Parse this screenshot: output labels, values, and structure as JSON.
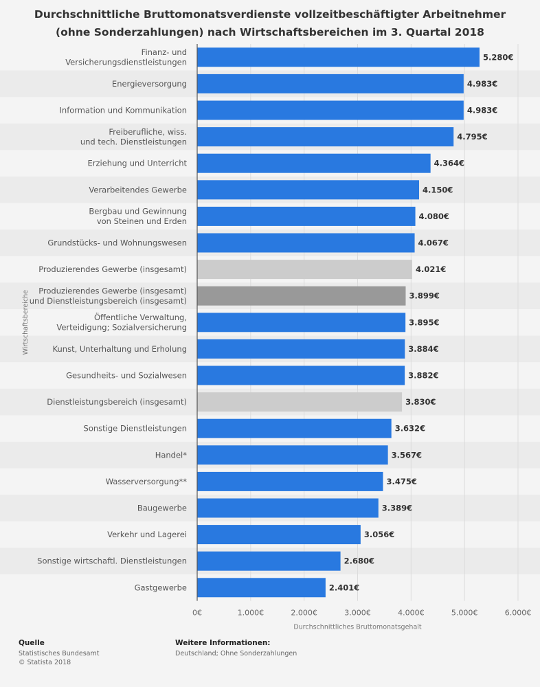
{
  "chart_data": {
    "type": "bar",
    "orientation": "horizontal",
    "title_line1": "Durchschnittliche Bruttomonatsverdienste vollzeitbeschäftigter Arbeitnehmer",
    "title_line2": "(ohne Sonderzahlungen) nach Wirtschaftsbereichen im 3. Quartal 2018",
    "xlabel": "Durchschnittliches Bruttomonatsgehalt",
    "ylabel": "Wirtschaftsbereiche",
    "xlim": [
      0,
      6000
    ],
    "xticks": [
      0,
      1000,
      2000,
      3000,
      4000,
      5000,
      6000
    ],
    "xtick_labels": [
      "0€",
      "1.000€",
      "2.000€",
      "3.000€",
      "4.000€",
      "5.000€",
      "6.000€"
    ],
    "grid": true,
    "colors": {
      "default": "#2979e0",
      "light_gray": "#cccccc",
      "dark_gray": "#999999"
    },
    "bars": [
      {
        "label": [
          "Finanz- und",
          "Versicherungsdienstleistungen"
        ],
        "value": 5280,
        "value_label": "5.280€",
        "color": "default"
      },
      {
        "label": [
          "Energieversorgung"
        ],
        "value": 4983,
        "value_label": "4.983€",
        "color": "default"
      },
      {
        "label": [
          "Information und Kommunikation"
        ],
        "value": 4983,
        "value_label": "4.983€",
        "color": "default"
      },
      {
        "label": [
          "Freiberufliche, wiss.",
          "und tech. Dienstleistungen"
        ],
        "value": 4795,
        "value_label": "4.795€",
        "color": "default"
      },
      {
        "label": [
          "Erziehung und Unterricht"
        ],
        "value": 4364,
        "value_label": "4.364€",
        "color": "default"
      },
      {
        "label": [
          "Verarbeitendes Gewerbe"
        ],
        "value": 4150,
        "value_label": "4.150€",
        "color": "default"
      },
      {
        "label": [
          "Bergbau und Gewinnung",
          "von Steinen und Erden"
        ],
        "value": 4080,
        "value_label": "4.080€",
        "color": "default"
      },
      {
        "label": [
          "Grundstücks- und Wohnungswesen"
        ],
        "value": 4067,
        "value_label": "4.067€",
        "color": "default"
      },
      {
        "label": [
          "Produzierendes Gewerbe (insgesamt)"
        ],
        "value": 4021,
        "value_label": "4.021€",
        "color": "light_gray"
      },
      {
        "label": [
          "Produzierendes Gewerbe (insgesamt)",
          "und Dienstleistungsbereich (insgesamt)"
        ],
        "value": 3899,
        "value_label": "3.899€",
        "color": "dark_gray"
      },
      {
        "label": [
          "Öffentliche Verwaltung,",
          "Verteidigung; Sozialversicherung"
        ],
        "value": 3895,
        "value_label": "3.895€",
        "color": "default"
      },
      {
        "label": [
          "Kunst, Unterhaltung und Erholung"
        ],
        "value": 3884,
        "value_label": "3.884€",
        "color": "default"
      },
      {
        "label": [
          "Gesundheits- und Sozialwesen"
        ],
        "value": 3882,
        "value_label": "3.882€",
        "color": "default"
      },
      {
        "label": [
          "Dienstleistungsbereich (insgesamt)"
        ],
        "value": 3830,
        "value_label": "3.830€",
        "color": "light_gray"
      },
      {
        "label": [
          "Sonstige Dienstleistungen"
        ],
        "value": 3632,
        "value_label": "3.632€",
        "color": "default"
      },
      {
        "label": [
          "Handel*"
        ],
        "value": 3567,
        "value_label": "3.567€",
        "color": "default"
      },
      {
        "label": [
          "Wasserversorgung**"
        ],
        "value": 3475,
        "value_label": "3.475€",
        "color": "default"
      },
      {
        "label": [
          "Baugewerbe"
        ],
        "value": 3389,
        "value_label": "3.389€",
        "color": "default"
      },
      {
        "label": [
          "Verkehr und Lagerei"
        ],
        "value": 3056,
        "value_label": "3.056€",
        "color": "default"
      },
      {
        "label": [
          "Sonstige wirtschaftl. Dienstleistungen"
        ],
        "value": 2680,
        "value_label": "2.680€",
        "color": "default"
      },
      {
        "label": [
          "Gastgewerbe"
        ],
        "value": 2401,
        "value_label": "2.401€",
        "color": "default"
      }
    ]
  },
  "footer": {
    "source_heading": "Quelle",
    "source_line1": "Statistisches Bundesamt",
    "source_line2": "© Statista 2018",
    "info_heading": "Weitere Informationen:",
    "info_line1": "Deutschland; Ohne Sonderzahlungen"
  }
}
